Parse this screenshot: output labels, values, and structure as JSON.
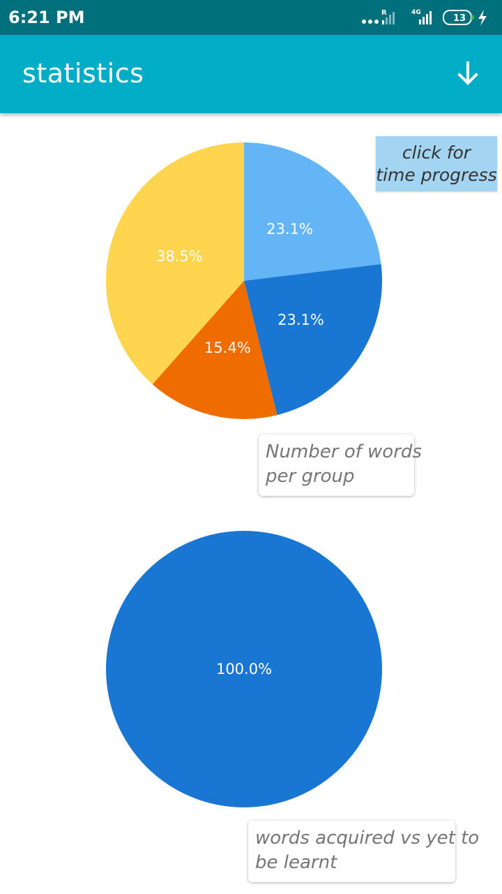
{
  "status_bar": {
    "time": "6:21 PM",
    "network_label": "4G",
    "roaming_label": "R",
    "battery": "13"
  },
  "app_bar": {
    "title": "statistics",
    "action_icon": "download-arrow-icon"
  },
  "time_progress_button": {
    "line1": "click for",
    "line2": "time progress"
  },
  "chart_data": [
    {
      "type": "pie",
      "title": "",
      "caption_line1": "Number of words",
      "caption_line2": "per group",
      "slices": [
        {
          "label": "23.1%",
          "value": 23.1,
          "color": "#64b5f6"
        },
        {
          "label": "23.1%",
          "value": 23.1,
          "color": "#1976d2"
        },
        {
          "label": "15.4%",
          "value": 15.4,
          "color": "#ef6c00"
        },
        {
          "label": "38.5%",
          "value": 38.5,
          "color": "#ffd54f"
        }
      ]
    },
    {
      "type": "pie",
      "title": "",
      "caption_line1": "words acquired vs yet to",
      "caption_line2": "be learnt",
      "slices": [
        {
          "label": "100.0%",
          "value": 100.0,
          "color": "#1976d2"
        }
      ]
    }
  ]
}
